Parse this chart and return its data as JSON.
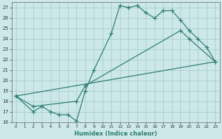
{
  "title": "",
  "xlabel": "Humidex (Indice chaleur)",
  "background_color": "#cce8e8",
  "grid_color": "#aacccc",
  "line_color": "#2e7d6e",
  "xlim": [
    -0.5,
    23.5
  ],
  "ylim": [
    16,
    27.5
  ],
  "xticks": [
    0,
    1,
    2,
    3,
    4,
    5,
    6,
    7,
    8,
    9,
    10,
    11,
    12,
    13,
    14,
    15,
    16,
    17,
    18,
    19,
    20,
    21,
    22,
    23
  ],
  "yticks": [
    16,
    17,
    18,
    19,
    20,
    21,
    22,
    23,
    24,
    25,
    26,
    27
  ],
  "series1_x": [
    0,
    2,
    3,
    4,
    5,
    6,
    7,
    8,
    9,
    11,
    12,
    13,
    14,
    15,
    16,
    17,
    18,
    19,
    20,
    21,
    22,
    23
  ],
  "series1_y": [
    18.5,
    17.0,
    17.5,
    17.0,
    16.7,
    16.7,
    16.1,
    19.0,
    21.0,
    24.5,
    27.2,
    27.0,
    27.2,
    26.5,
    26.0,
    26.7,
    26.7,
    25.8,
    24.8,
    24.0,
    23.2,
    21.8
  ],
  "series2_x": [
    0,
    2,
    7,
    8,
    19,
    20,
    23
  ],
  "series2_y": [
    18.5,
    17.5,
    18.0,
    19.5,
    24.8,
    24.0,
    21.8
  ],
  "series3_x": [
    0,
    23
  ],
  "series3_y": [
    18.5,
    21.8
  ],
  "marker": "+",
  "markersize": 4,
  "linewidth": 0.9
}
